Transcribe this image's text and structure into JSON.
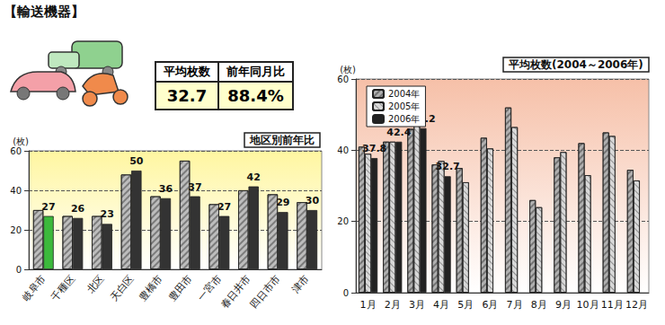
{
  "heading": "【輸送機器】",
  "summary": {
    "headers": [
      "平均枚数",
      "前年同月比"
    ],
    "values": [
      "32.7",
      "88.4%"
    ]
  },
  "chart_data": [
    {
      "type": "bar",
      "title": "地区別前年比",
      "y_label": "(枚)",
      "categories": [
        "岐阜市",
        "千種区",
        "北区",
        "天白区",
        "豊橋市",
        "豊田市",
        "一宮市",
        "春日井市",
        "四日市市",
        "津市"
      ],
      "series": [
        {
          "color": "#bdbdbd",
          "values": [
            30,
            27,
            27,
            48,
            37,
            55,
            33,
            40,
            38,
            34
          ]
        },
        {
          "colors": [
            "#3cb93c",
            "#333333",
            "#333333",
            "#333333",
            "#333333",
            "#333333",
            "#333333",
            "#333333",
            "#333333",
            "#333333"
          ],
          "values": [
            27,
            26,
            23,
            50,
            36,
            37,
            27,
            42,
            29,
            30
          ],
          "data_labels": true
        }
      ],
      "ylim": [
        0,
        60
      ],
      "yticks": [
        0,
        20,
        40,
        60
      ],
      "grid": true
    },
    {
      "type": "bar",
      "title": "平均枚数(2004～2006年)",
      "y_label": "(枚)",
      "categories": [
        "1月",
        "2月",
        "3月",
        "4月",
        "5月",
        "6月",
        "7月",
        "8月",
        "9月",
        "10月",
        "11月",
        "12月"
      ],
      "series": [
        {
          "name": "2004年",
          "color": "#b0b0b0",
          "values": [
            41,
            42.4,
            46,
            36,
            35,
            43.5,
            52,
            26,
            38,
            42,
            45,
            34.5
          ]
        },
        {
          "name": "2005年",
          "color": "#d8d8d8",
          "values": [
            39,
            42.4,
            47.5,
            37,
            31,
            40.5,
            46.5,
            24,
            39.5,
            33,
            44,
            31.5
          ]
        },
        {
          "name": "2006年",
          "color": "#222222",
          "values": [
            37.8,
            42.4,
            46.2,
            32.7,
            null,
            null,
            null,
            null,
            null,
            null,
            null,
            null
          ],
          "data_labels": true
        }
      ],
      "ylim": [
        0,
        60
      ],
      "yticks": [
        0,
        20,
        40,
        60
      ],
      "grid": true,
      "legend": "top-left"
    }
  ]
}
